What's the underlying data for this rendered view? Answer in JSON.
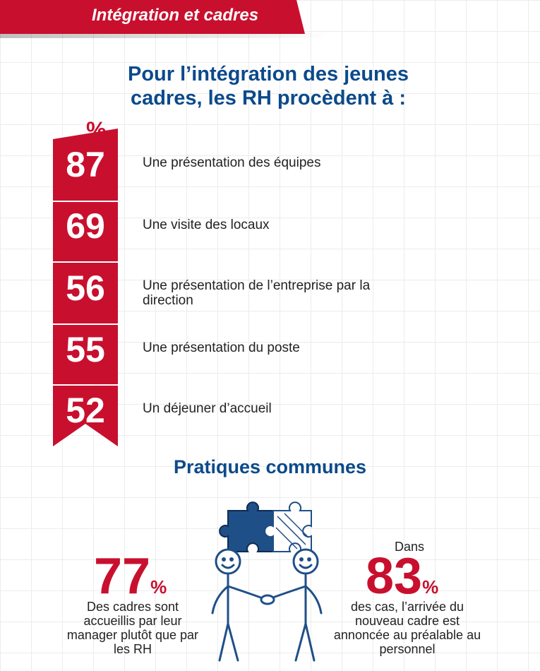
{
  "header": {
    "banner_title": "Intégration et cadres"
  },
  "intro": {
    "title": "Pour l’intégration des jeunes cadres, les RH procèdent à :"
  },
  "ranking": {
    "unit": "%",
    "items": [
      {
        "value": "87",
        "label": "Une présentation des équipes"
      },
      {
        "value": "69",
        "label": "Une visite des locaux"
      },
      {
        "value": "56",
        "label": "Une présentation de l’entreprise par la direction"
      },
      {
        "value": "55",
        "label": "Une présentation du poste"
      },
      {
        "value": "52",
        "label": "Un déjeuner d’accueil"
      }
    ]
  },
  "practices": {
    "title": "Pratiques communes",
    "left": {
      "value": "77",
      "unit": "%",
      "caption": "Des cadres sont accueillis par leur manager plutôt que par les RH"
    },
    "right": {
      "prefix": "Dans",
      "value": "83",
      "unit": "%",
      "caption": "des cas, l’arrivée du nouveau cadre est annoncée au préalable au personnel"
    }
  },
  "colors": {
    "accent": "#c8102e",
    "primary": "#0b4a8b",
    "text": "#222222"
  },
  "icons": [
    "puzzle-icon",
    "handshake-illustration"
  ]
}
